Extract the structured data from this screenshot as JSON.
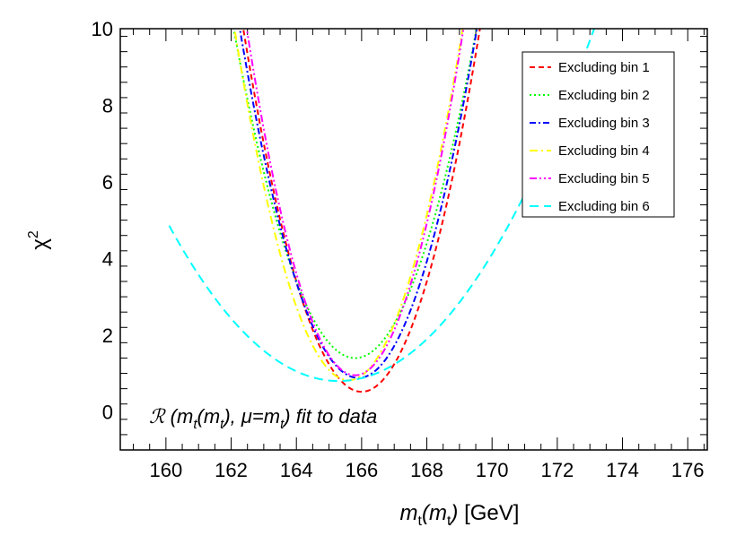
{
  "chart_data": {
    "type": "line",
    "xlabel_main": "m",
    "xlabel_sub1": "t",
    "xlabel_mid": "(m",
    "xlabel_sub2": "t",
    "xlabel_close": ")",
    "xlabel_unit": " [GeV]",
    "ylabel_main": "χ",
    "ylabel_sup": "2",
    "xlim": [
      158.6,
      176.6
    ],
    "ylim": [
      -1,
      10
    ],
    "x_ticks": [
      160,
      162,
      164,
      166,
      168,
      170,
      172,
      174,
      176
    ],
    "y_ticks": [
      0,
      2,
      4,
      6,
      8,
      10
    ],
    "annotation": {
      "script_r": "ℛ",
      "t1": " (m",
      "s1": "t",
      "t2": "(m",
      "s2": "t",
      "t3": "), μ=m",
      "s3": "t",
      "t4": ") fit to data"
    },
    "legend_position": "top-right",
    "series": [
      {
        "name": "Excluding bin 1",
        "color": "#ff0000",
        "dash": "6,4",
        "min_x": 166.0,
        "min_y": 0.52,
        "a": 0.72,
        "x_range": [
          161.4,
          170.3
        ]
      },
      {
        "name": "Excluding bin 2",
        "color": "#00ff00",
        "dash": "2,3",
        "min_x": 165.8,
        "min_y": 1.4,
        "a": 0.62,
        "x_range": [
          161.6,
          170.2
        ]
      },
      {
        "name": "Excluding bin 3",
        "color": "#0000ff",
        "dash": "7,3,2,3",
        "min_x": 165.9,
        "min_y": 0.88,
        "a": 0.69,
        "x_range": [
          161.6,
          170.2
        ]
      },
      {
        "name": "Excluding bin 4",
        "color": "#ffff00",
        "dash": "9,4,2,4",
        "min_x": 165.6,
        "min_y": 0.82,
        "a": 0.75,
        "x_range": [
          161.5,
          169.9
        ]
      },
      {
        "name": "Excluding bin 5",
        "color": "#ff00ff",
        "dash": "8,3,2,3,2,3",
        "min_x": 165.8,
        "min_y": 0.95,
        "a": 0.82,
        "x_range": [
          161.8,
          169.8
        ]
      },
      {
        "name": "Excluding bin 6",
        "color": "#00ffff",
        "dash": "10,6",
        "min_x": 165.3,
        "min_y": 0.8,
        "a": 0.15,
        "x_range": [
          160.1,
          173.5
        ]
      }
    ]
  }
}
